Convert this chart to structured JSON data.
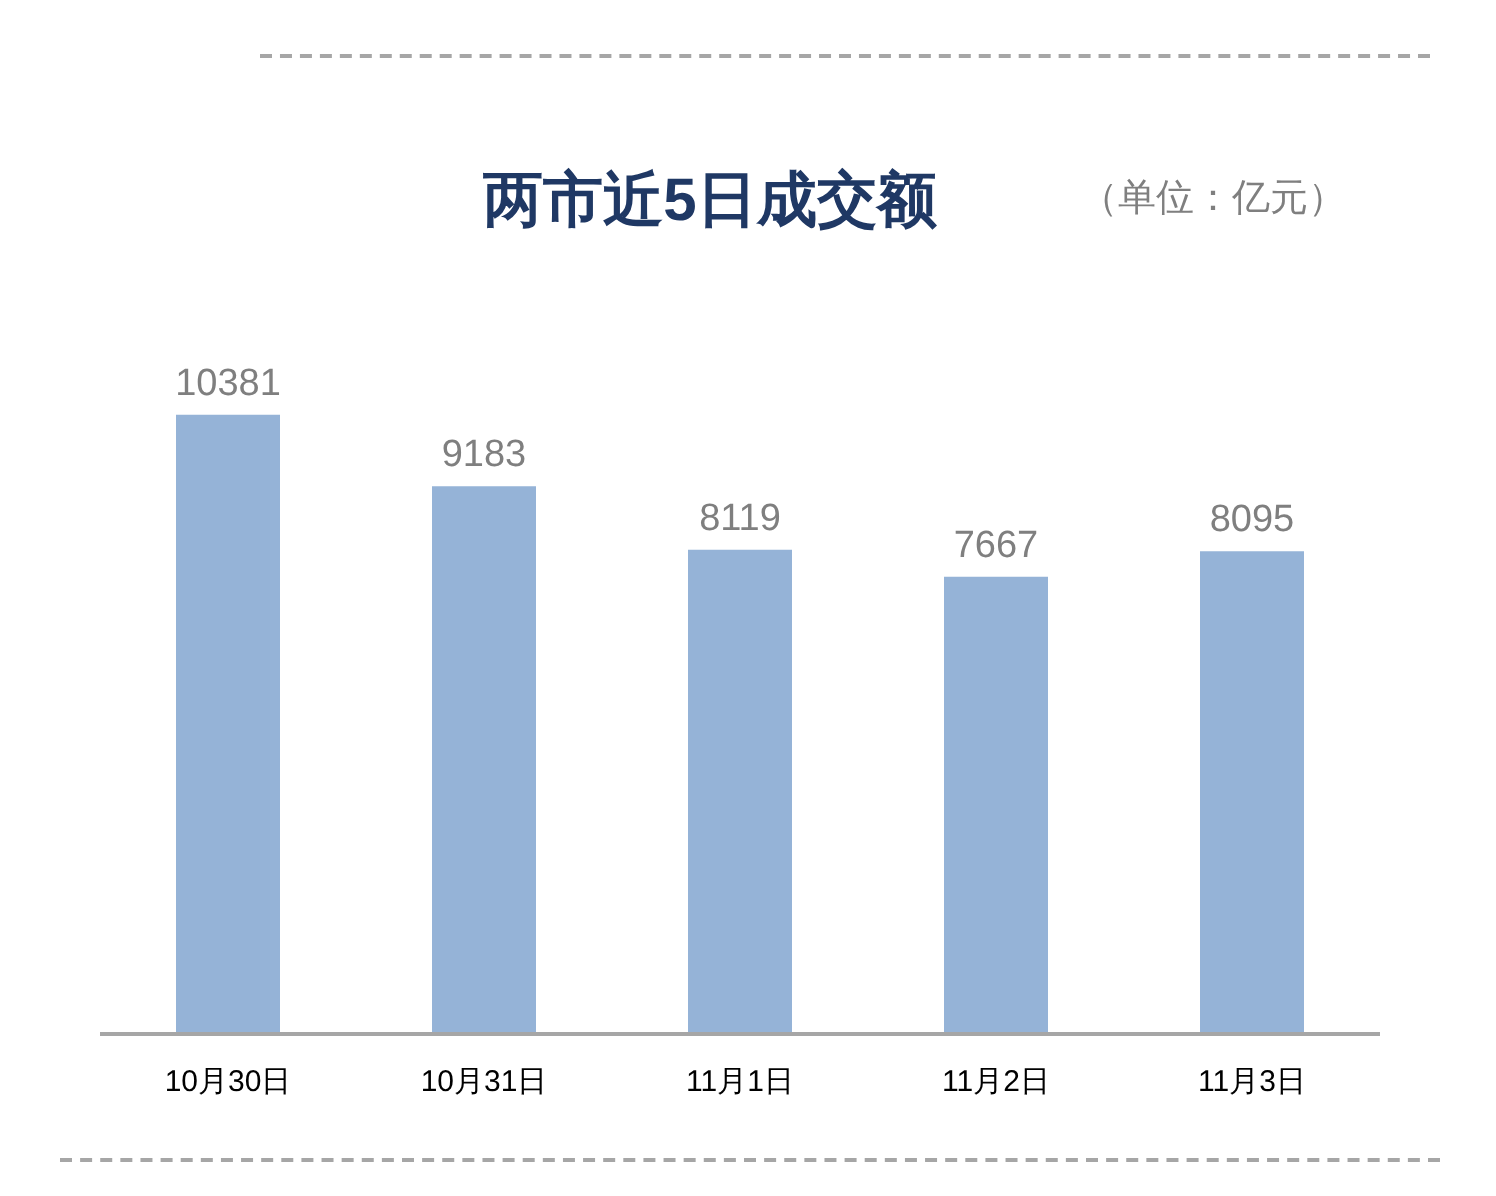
{
  "chart_data": {
    "type": "bar",
    "title": "两市近5日成交额",
    "subtitle": "（单位：亿元）",
    "categories": [
      "10月30日",
      "10月31日",
      "11月1日",
      "11月2日",
      "11月3日"
    ],
    "values": [
      10381,
      9183,
      8119,
      7667,
      8095
    ],
    "color": "#95b3d7",
    "data_labels": true,
    "grid": false,
    "legend": false
  }
}
